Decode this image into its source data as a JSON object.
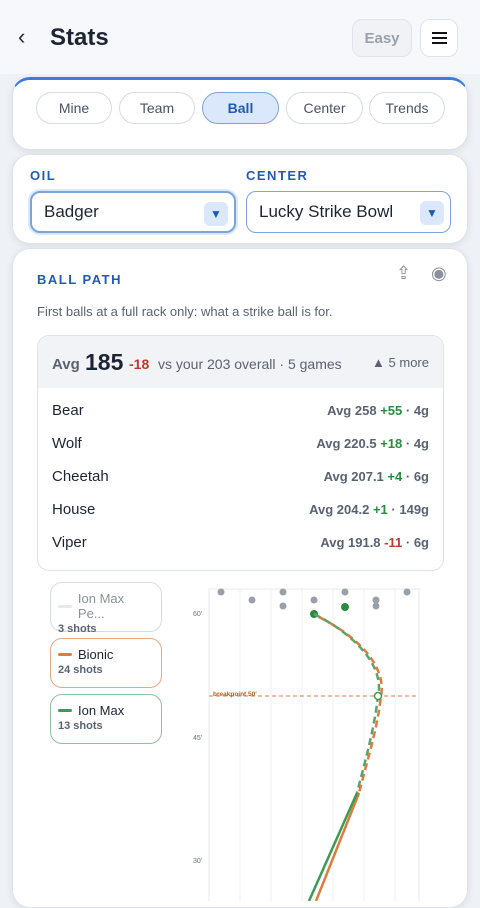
{
  "header": {
    "title": "Stats",
    "difficulty": "Easy"
  },
  "tabs": [
    "Mine",
    "Team",
    "Ball",
    "Center",
    "Trends"
  ],
  "filters": {
    "oil": {
      "label": "OIL",
      "value": "Badger"
    },
    "center": {
      "label": "CENTER",
      "value": "Lucky Strike Bowl"
    }
  },
  "ball_path": {
    "title": "BALL PATH",
    "subtitle": "First balls at a full rack only: what a strike ball is for.",
    "summary": {
      "avg_label": "Avg",
      "avg": "185",
      "delta": "-18",
      "overall": "vs your 203 overall · 5 games",
      "more": "▲ 5 more"
    },
    "balls": [
      {
        "name": "Bear",
        "avg": "Avg 258",
        "delta": "+55",
        "games": "· 4g"
      },
      {
        "name": "Wolf",
        "avg": "Avg 220.5",
        "delta": "+18",
        "games": "· 4g"
      },
      {
        "name": "Cheetah",
        "avg": "Avg 207.1",
        "delta": "+4",
        "games": "· 6g"
      },
      {
        "name": "House",
        "avg": "Avg 204.2",
        "delta": "+1",
        "games": "· 149g"
      },
      {
        "name": "Viper",
        "avg": "Avg 191.8",
        "delta": "-11",
        "games": "· 6g"
      }
    ],
    "legend": [
      {
        "name": "Ion Max Pe...",
        "shots": "3 shots"
      },
      {
        "name": "Bionic",
        "shots": "24 shots"
      },
      {
        "name": "Ion Max",
        "shots": "13 shots"
      }
    ],
    "lane": {
      "yticks": [
        "60'",
        "45'",
        "30'"
      ],
      "breakpoint": "breakpoint 50'"
    }
  }
}
